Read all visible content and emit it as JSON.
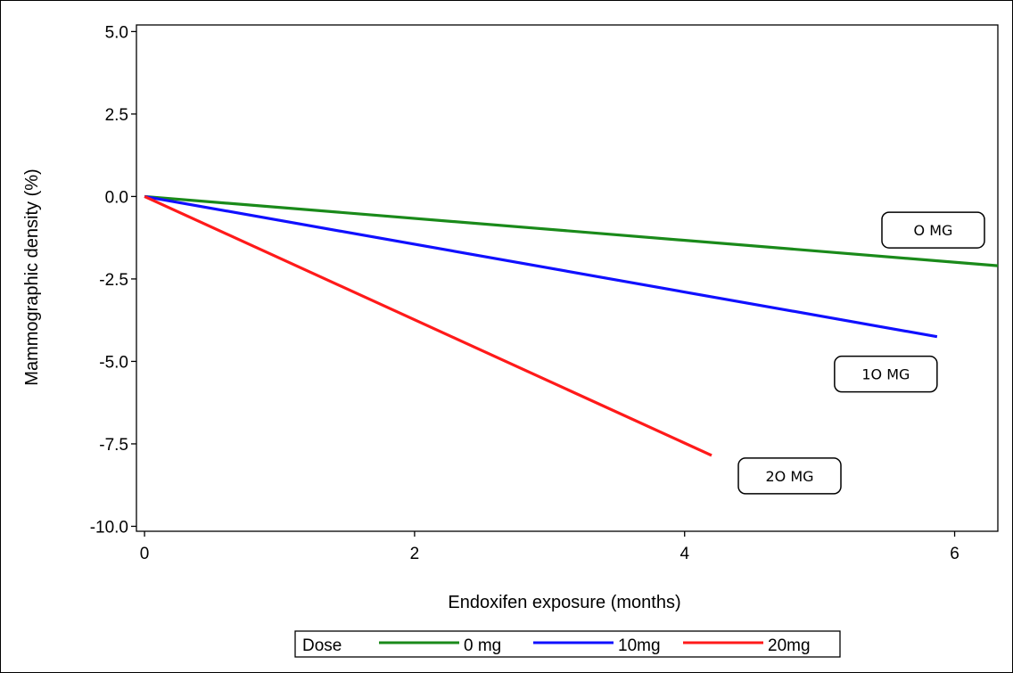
{
  "chart_data": {
    "type": "line",
    "xlabel": "Endoxifen exposure (months)",
    "ylabel": "Mammographic density (%)",
    "xlim": [
      -0.06,
      6.32
    ],
    "ylim": [
      -10.15,
      5.2
    ],
    "x_ticks": [
      0,
      2,
      4,
      6
    ],
    "x_tick_labels": [
      "0",
      "2",
      "4",
      "6"
    ],
    "y_ticks": [
      5.0,
      2.5,
      0.0,
      -2.5,
      -5.0,
      -7.5,
      -10.0
    ],
    "y_tick_labels": [
      "5.0",
      "2.5",
      "0.0",
      "-2.5",
      "-5.0",
      "-7.5",
      "-10.0"
    ],
    "grid": false,
    "legend": {
      "title": "Dose",
      "placement": "bottom-center",
      "entries": [
        "0 mg",
        "10mg",
        "20mg"
      ]
    },
    "series": [
      {
        "name": "0 mg",
        "color": "#1a8a1a",
        "x": [
          0,
          6.32
        ],
        "y": [
          0,
          -2.1
        ]
      },
      {
        "name": "10mg",
        "color": "#1010ff",
        "x": [
          0,
          5.87
        ],
        "y": [
          0,
          -4.25
        ]
      },
      {
        "name": "20mg",
        "color": "#ff1a1a",
        "x": [
          0,
          4.2
        ],
        "y": [
          0,
          -7.85
        ]
      }
    ],
    "annotations": [
      {
        "text": "O MG",
        "series": 0
      },
      {
        "text": "1O MG",
        "series": 1
      },
      {
        "text": "2O MG",
        "series": 2
      }
    ]
  }
}
